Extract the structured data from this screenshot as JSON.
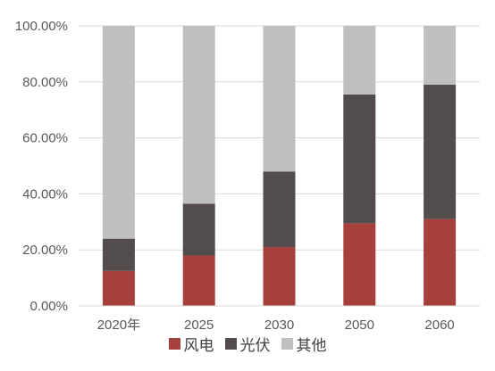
{
  "chart_data": {
    "type": "bar",
    "stacked": true,
    "categories": [
      "2020年",
      "2025",
      "2030",
      "2050",
      "2060"
    ],
    "series": [
      {
        "name": "风电",
        "color": "#a5403c",
        "values": [
          12.5,
          18.0,
          21.0,
          29.5,
          31.0
        ]
      },
      {
        "name": "光伏",
        "color": "#524c4c",
        "values": [
          11.5,
          18.5,
          27.0,
          46.0,
          48.0
        ]
      },
      {
        "name": "其他",
        "color": "#bfbfbf",
        "values": [
          76.0,
          63.5,
          52.0,
          24.5,
          21.0
        ]
      }
    ],
    "y_ticks": [
      "0.00%",
      "20.00%",
      "40.00%",
      "60.00%",
      "80.00%",
      "100.00%"
    ],
    "ylim": [
      0,
      100
    ],
    "grid": true,
    "legend_position": "bottom",
    "title": "",
    "xlabel": "",
    "ylabel": ""
  }
}
